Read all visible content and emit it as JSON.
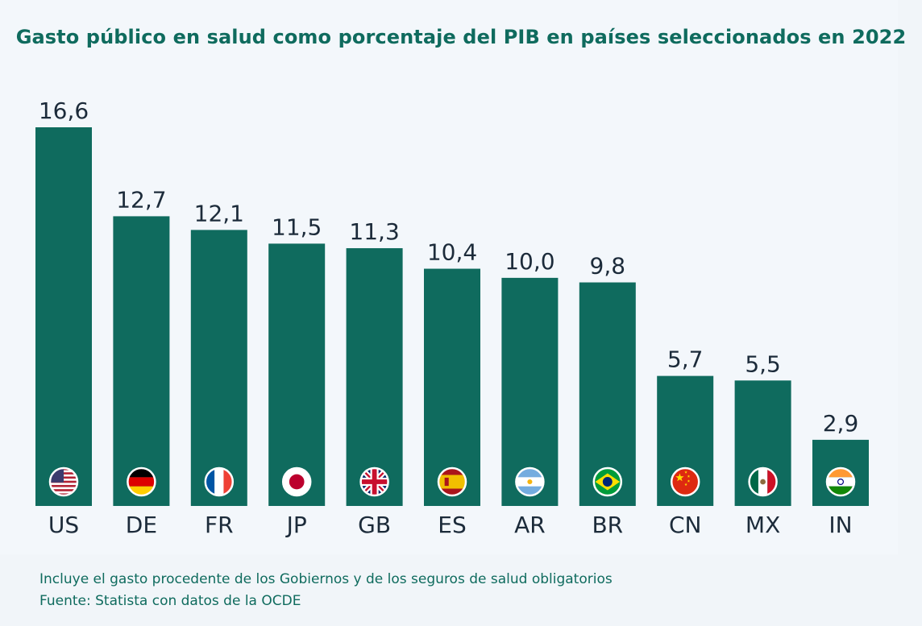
{
  "chart_data": {
    "type": "bar",
    "title": "Gasto público en salud como porcentaje del PIB en países seleccionados en 2022",
    "categories": [
      "US",
      "DE",
      "FR",
      "JP",
      "GB",
      "ES",
      "AR",
      "BR",
      "CN",
      "MX",
      "IN"
    ],
    "values": [
      16.6,
      12.7,
      12.1,
      11.5,
      11.3,
      10.4,
      10.0,
      9.8,
      5.7,
      5.5,
      2.9
    ],
    "value_labels": [
      "16,6",
      "12,7",
      "12,1",
      "11,5",
      "11,3",
      "10,4",
      "10,0",
      "9,8",
      "5,7",
      "5,5",
      "2,9"
    ],
    "flags": [
      "us-flag-icon",
      "de-flag-icon",
      "fr-flag-icon",
      "jp-flag-icon",
      "gb-flag-icon",
      "es-flag-icon",
      "ar-flag-icon",
      "br-flag-icon",
      "cn-flag-icon",
      "mx-flag-icon",
      "in-flag-icon"
    ],
    "ylim": [
      0,
      16.6
    ],
    "grid": false,
    "bar_color": "#0f6b5e"
  },
  "footer": {
    "note": "Incluye el gasto procedente de los Gobiernos y de los seguros de salud obligatorios",
    "source": "Fuente: Statista con datos de la OCDE"
  }
}
